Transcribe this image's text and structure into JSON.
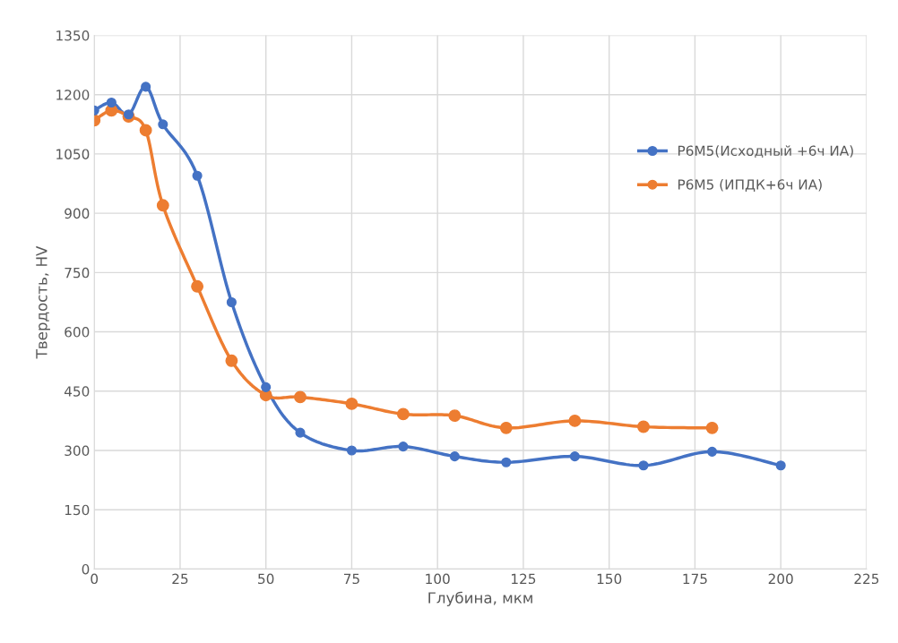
{
  "chart_data": {
    "type": "line",
    "xlabel": "Глубина, мкм",
    "ylabel": "Твердость, HV",
    "xlim": [
      0,
      225
    ],
    "xticks": [
      0,
      25,
      50,
      75,
      100,
      125,
      150,
      175,
      200,
      225
    ],
    "ylim": [
      0,
      1350
    ],
    "yticks": [
      0,
      150,
      300,
      450,
      600,
      750,
      900,
      1050,
      1200,
      1350
    ],
    "grid": true,
    "legend": "right",
    "marker": "circle",
    "line_style": "solid",
    "series": [
      {
        "name": "Р6М5(Исходный +6ч ИА)",
        "color": "#4472c4",
        "x": [
          0,
          5,
          10,
          15,
          20,
          30,
          40,
          50,
          60,
          75,
          90,
          105,
          120,
          140,
          160,
          180,
          200
        ],
        "values": [
          1160,
          1180,
          1150,
          1220,
          1125,
          995,
          675,
          460,
          345,
          300,
          310,
          285,
          270,
          285,
          262,
          297,
          262
        ]
      },
      {
        "name": "Р6М5 (ИПДК+6ч ИА)",
        "color": "#ed7d31",
        "x": [
          0,
          5,
          10,
          15,
          20,
          30,
          40,
          50,
          60,
          75,
          90,
          105,
          120,
          140,
          160,
          180
        ],
        "values": [
          1135,
          1160,
          1145,
          1110,
          920,
          715,
          527,
          440,
          435,
          418,
          392,
          388,
          357,
          375,
          360,
          357
        ]
      }
    ]
  }
}
